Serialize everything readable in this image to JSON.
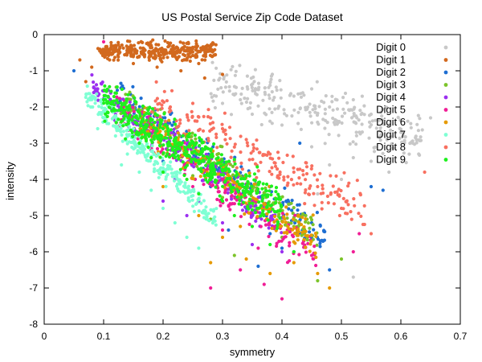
{
  "chart_data": {
    "type": "scatter",
    "title": "US Postal Service Zip Code Dataset",
    "xlabel": "symmetry",
    "ylabel": "intensity",
    "xlim": [
      0,
      0.7
    ],
    "ylim": [
      -8,
      0
    ],
    "xticks": [
      "0",
      "0.1",
      "0.2",
      "0.3",
      "0.4",
      "0.5",
      "0.6",
      "0.7"
    ],
    "yticks": [
      "0",
      "-1",
      "-2",
      "-3",
      "-4",
      "-5",
      "-6",
      "-7",
      "-8"
    ],
    "grid": false,
    "legend_position": "top-right",
    "series": [
      {
        "name": "Digit 0",
        "color": "#c8c8c8",
        "n": 260,
        "points": [
          [
            0.33,
            -1.8
          ],
          [
            0.38,
            -1.4
          ],
          [
            0.42,
            -1.7
          ],
          [
            0.45,
            -1.5
          ],
          [
            0.48,
            -2.0
          ],
          [
            0.52,
            -1.8
          ],
          [
            0.55,
            -2.2
          ],
          [
            0.58,
            -2.5
          ],
          [
            0.6,
            -2.7
          ],
          [
            0.62,
            -3.0
          ],
          [
            0.63,
            -3.3
          ],
          [
            0.65,
            -2.3
          ],
          [
            0.52,
            -3.4
          ],
          [
            0.48,
            -3.6
          ],
          [
            0.45,
            -3.1
          ],
          [
            0.4,
            -2.5
          ],
          [
            0.35,
            -2.2
          ],
          [
            0.3,
            -1.9
          ],
          [
            0.28,
            -2.3
          ],
          [
            0.5,
            -4.0
          ],
          [
            0.46,
            -4.4
          ],
          [
            0.52,
            -6.7
          ],
          [
            0.58,
            -3.8
          ],
          [
            0.55,
            -3.5
          ]
        ]
      },
      {
        "name": "Digit 1",
        "color": "#d2691e",
        "n": 320,
        "points": [
          [
            0.1,
            -0.5
          ],
          [
            0.12,
            -0.3
          ],
          [
            0.14,
            -0.4
          ],
          [
            0.16,
            -0.6
          ],
          [
            0.18,
            -0.3
          ],
          [
            0.2,
            -0.5
          ],
          [
            0.22,
            -0.6
          ],
          [
            0.24,
            -0.7
          ],
          [
            0.26,
            -0.8
          ],
          [
            0.08,
            -0.9
          ],
          [
            0.11,
            -0.7
          ],
          [
            0.15,
            -0.8
          ],
          [
            0.19,
            -0.9
          ],
          [
            0.23,
            -1.0
          ],
          [
            0.27,
            -1.2
          ],
          [
            0.3,
            -1.1
          ],
          [
            0.06,
            -0.7
          ],
          [
            0.07,
            -1.3
          ]
        ]
      },
      {
        "name": "Digit 2",
        "color": "#1e6ed2",
        "n": 170,
        "points": [
          [
            0.05,
            -1.0
          ],
          [
            0.2,
            -3.5
          ],
          [
            0.28,
            -4.2
          ],
          [
            0.34,
            -4.8
          ],
          [
            0.38,
            -5.5
          ],
          [
            0.42,
            -6.0
          ],
          [
            0.45,
            -5.2
          ],
          [
            0.48,
            -6.5
          ],
          [
            0.55,
            -4.2
          ],
          [
            0.57,
            -4.3
          ],
          [
            0.43,
            -3.0
          ],
          [
            0.36,
            -6.4
          ],
          [
            0.4,
            -5.9
          ],
          [
            0.31,
            -5.4
          ]
        ]
      },
      {
        "name": "Digit 3",
        "color": "#7cc42a",
        "n": 230,
        "points": [
          [
            0.15,
            -2.8
          ],
          [
            0.2,
            -3.3
          ],
          [
            0.25,
            -3.9
          ],
          [
            0.3,
            -4.5
          ],
          [
            0.35,
            -5.0
          ],
          [
            0.4,
            -5.6
          ],
          [
            0.44,
            -5.0
          ],
          [
            0.5,
            -6.2
          ],
          [
            0.46,
            -6.8
          ],
          [
            0.42,
            -5.3
          ],
          [
            0.32,
            -6.1
          ],
          [
            0.28,
            -5.1
          ]
        ]
      },
      {
        "name": "Digit 4",
        "color": "#9b30f0",
        "n": 230,
        "points": [
          [
            0.09,
            -1.5
          ],
          [
            0.12,
            -2.2
          ],
          [
            0.15,
            -2.8
          ],
          [
            0.18,
            -3.4
          ],
          [
            0.22,
            -4.0
          ],
          [
            0.26,
            -4.6
          ],
          [
            0.3,
            -5.2
          ],
          [
            0.35,
            -5.8
          ],
          [
            0.4,
            -6.0
          ],
          [
            0.24,
            -5.0
          ],
          [
            0.2,
            -4.6
          ]
        ]
      },
      {
        "name": "Digit 5",
        "color": "#f01e96",
        "n": 200,
        "points": [
          [
            0.1,
            -0.2
          ],
          [
            0.18,
            -3.2
          ],
          [
            0.25,
            -4.2
          ],
          [
            0.3,
            -5.4
          ],
          [
            0.33,
            -6.5
          ],
          [
            0.37,
            -6.9
          ],
          [
            0.4,
            -7.3
          ],
          [
            0.45,
            -6.1
          ],
          [
            0.53,
            -5.5
          ],
          [
            0.52,
            -6.0
          ],
          [
            0.28,
            -7.0
          ],
          [
            0.36,
            -5.9
          ]
        ]
      },
      {
        "name": "Digit 6",
        "color": "#e69a00",
        "n": 200,
        "points": [
          [
            0.2,
            -4.2
          ],
          [
            0.26,
            -5.0
          ],
          [
            0.3,
            -5.6
          ],
          [
            0.34,
            -6.2
          ],
          [
            0.38,
            -6.6
          ],
          [
            0.42,
            -6.3
          ],
          [
            0.46,
            -6.6
          ],
          [
            0.33,
            -5.3
          ],
          [
            0.28,
            -6.3
          ],
          [
            0.48,
            -7.0
          ]
        ]
      },
      {
        "name": "Digit 7",
        "color": "#7fffd4",
        "n": 260,
        "points": [
          [
            0.08,
            -1.8
          ],
          [
            0.1,
            -2.3
          ],
          [
            0.12,
            -2.8
          ],
          [
            0.14,
            -3.3
          ],
          [
            0.16,
            -3.8
          ],
          [
            0.18,
            -4.3
          ],
          [
            0.2,
            -4.8
          ],
          [
            0.22,
            -5.2
          ],
          [
            0.24,
            -5.6
          ],
          [
            0.26,
            -5.9
          ],
          [
            0.09,
            -2.6
          ],
          [
            0.13,
            -3.6
          ]
        ]
      },
      {
        "name": "Digit 8",
        "color": "#f87060",
        "n": 200,
        "points": [
          [
            0.25,
            -1.9
          ],
          [
            0.28,
            -2.3
          ],
          [
            0.3,
            -2.6
          ],
          [
            0.34,
            -2.9
          ],
          [
            0.38,
            -3.3
          ],
          [
            0.42,
            -3.8
          ],
          [
            0.46,
            -4.2
          ],
          [
            0.5,
            -4.8
          ],
          [
            0.55,
            -5.5
          ],
          [
            0.64,
            -3.8
          ],
          [
            0.32,
            -3.5
          ],
          [
            0.36,
            -4.1
          ]
        ]
      },
      {
        "name": "Digit 9",
        "color": "#1ef01e",
        "n": 480,
        "points": [
          [
            0.1,
            -1.8
          ],
          [
            0.13,
            -2.4
          ],
          [
            0.16,
            -3.0
          ],
          [
            0.18,
            -3.4
          ],
          [
            0.2,
            -3.8
          ],
          [
            0.22,
            -3.2
          ],
          [
            0.24,
            -4.0
          ],
          [
            0.26,
            -4.4
          ],
          [
            0.28,
            -4.0
          ],
          [
            0.3,
            -4.6
          ],
          [
            0.32,
            -5.0
          ],
          [
            0.35,
            -5.3
          ],
          [
            0.38,
            -5.8
          ],
          [
            0.42,
            -6.0
          ],
          [
            0.25,
            -3.0
          ],
          [
            0.2,
            -2.6
          ]
        ]
      }
    ]
  }
}
